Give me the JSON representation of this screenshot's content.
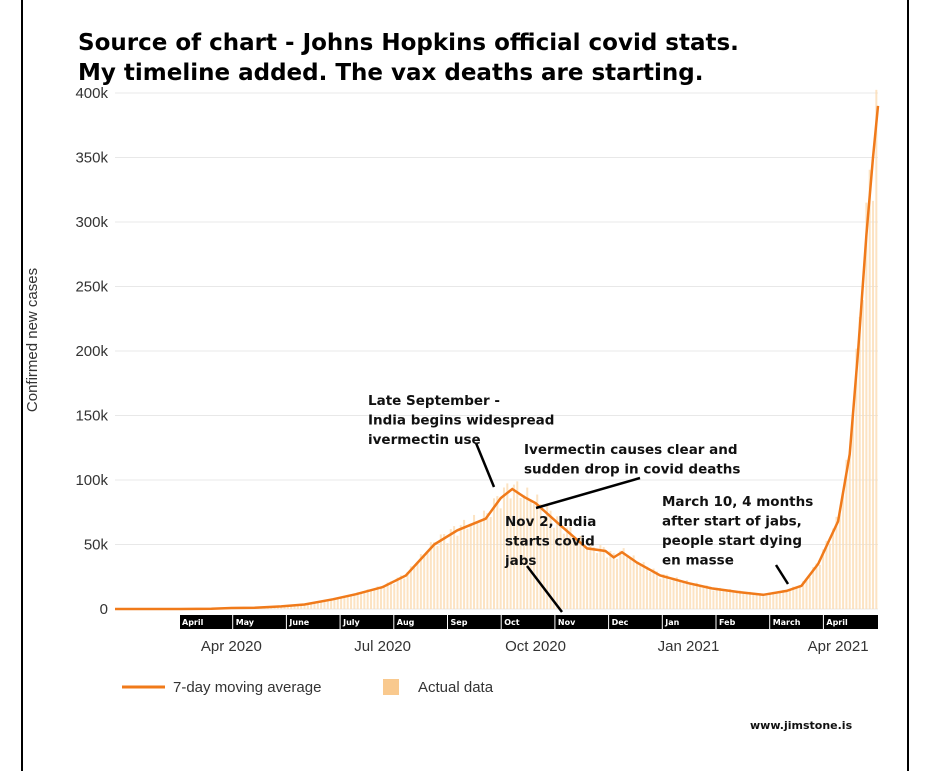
{
  "chart_data": {
    "type": "line",
    "title_lines": [
      "Source of chart - Johns Hopkins official covid stats.",
      "My timeline added.  The vax deaths are starting."
    ],
    "ylabel": "Confirmed new cases",
    "xlabel": "",
    "ylim": [
      0,
      400000
    ],
    "yticks": [
      {
        "value": 0,
        "label": "0"
      },
      {
        "value": 50000,
        "label": "50k"
      },
      {
        "value": 100000,
        "label": "100k"
      },
      {
        "value": 150000,
        "label": "150k"
      },
      {
        "value": 200000,
        "label": "200k"
      },
      {
        "value": 250000,
        "label": "250k"
      },
      {
        "value": 300000,
        "label": "300k"
      },
      {
        "value": 350000,
        "label": "350k"
      },
      {
        "value": 400000,
        "label": "400k"
      }
    ],
    "xlim": [
      "2020-01-22",
      "2021-04-25"
    ],
    "xticks": [
      {
        "date": "2020-04-01",
        "label": "Apr 2020"
      },
      {
        "date": "2020-07-01",
        "label": "Jul 2020"
      },
      {
        "date": "2020-10-01",
        "label": "Oct 2020"
      },
      {
        "date": "2021-01-01",
        "label": "Jan 2021"
      },
      {
        "date": "2021-04-01",
        "label": "Apr 2021"
      }
    ],
    "grid": true,
    "legend_position": "bottom-left",
    "series": [
      {
        "name": "7-day moving average",
        "kind": "line",
        "color": "#f07a1a"
      },
      {
        "name": "Actual data",
        "kind": "bar",
        "color": "#f9c98e"
      }
    ],
    "points": [
      [
        "2020-01-22",
        0
      ],
      [
        "2020-03-01",
        0
      ],
      [
        "2020-03-20",
        200
      ],
      [
        "2020-04-01",
        800
      ],
      [
        "2020-04-15",
        1000
      ],
      [
        "2020-05-01",
        2000
      ],
      [
        "2020-05-15",
        3500
      ],
      [
        "2020-06-01",
        7500
      ],
      [
        "2020-06-15",
        11500
      ],
      [
        "2020-07-01",
        17000
      ],
      [
        "2020-07-15",
        26000
      ],
      [
        "2020-08-01",
        50000
      ],
      [
        "2020-08-15",
        61000
      ],
      [
        "2020-09-01",
        70000
      ],
      [
        "2020-09-10",
        86000
      ],
      [
        "2020-09-17",
        93000
      ],
      [
        "2020-09-24",
        87000
      ],
      [
        "2020-10-01",
        82000
      ],
      [
        "2020-10-15",
        66000
      ],
      [
        "2020-11-01",
        47000
      ],
      [
        "2020-11-12",
        45000
      ],
      [
        "2020-11-17",
        40000
      ],
      [
        "2020-11-22",
        44000
      ],
      [
        "2020-12-01",
        36000
      ],
      [
        "2020-12-15",
        26000
      ],
      [
        "2021-01-01",
        20000
      ],
      [
        "2021-01-15",
        16000
      ],
      [
        "2021-02-01",
        13000
      ],
      [
        "2021-02-15",
        11000
      ],
      [
        "2021-03-01",
        14000
      ],
      [
        "2021-03-10",
        18000
      ],
      [
        "2021-03-20",
        35000
      ],
      [
        "2021-04-01",
        68000
      ],
      [
        "2021-04-08",
        120000
      ],
      [
        "2021-04-13",
        200000
      ],
      [
        "2021-04-18",
        290000
      ],
      [
        "2021-04-22",
        350000
      ],
      [
        "2021-04-25",
        390000
      ]
    ],
    "month_strip": [
      "April",
      "May",
      "June",
      "July",
      "Aug",
      "Sep",
      "Oct",
      "Nov",
      "Dec",
      "Jan",
      "Feb",
      "March",
      "April"
    ],
    "annotations": [
      {
        "lines": [
          "Late September -",
          "India begins widespread",
          "ivermectin use"
        ]
      },
      {
        "lines": [
          "Ivermectin causes clear and",
          "sudden drop in covid deaths"
        ]
      },
      {
        "lines": [
          "Nov 2, India",
          "starts covid",
          "jabs"
        ]
      },
      {
        "lines": [
          "March 10, 4 months",
          "after start of jabs,",
          "people start dying",
          "en masse"
        ]
      }
    ]
  },
  "watermark": "www.jimstone.is"
}
